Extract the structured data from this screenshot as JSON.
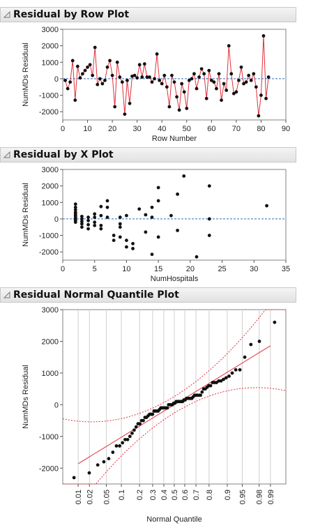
{
  "sections": [
    {
      "title": "Residual by Row Plot"
    },
    {
      "title": "Residual by X Plot"
    },
    {
      "title": "Residual Normal Quantile Plot"
    }
  ],
  "colors": {
    "points": "#111111",
    "line": "#e0303c",
    "zero": "#2a6bb8",
    "grid": "#cfcfcf",
    "frame": "#808080"
  },
  "chart_data": [
    {
      "type": "line",
      "title": "Residual by Row Plot",
      "xlabel": "Row Number",
      "ylabel": "NumMDs Residual",
      "xlim": [
        0,
        90
      ],
      "ylim": [
        -2500,
        3000
      ],
      "x_ticks": [
        0,
        10,
        20,
        30,
        40,
        50,
        60,
        70,
        80,
        90
      ],
      "y_ticks": [
        -2000,
        -1000,
        0,
        1000,
        2000,
        3000
      ],
      "reference_line": 0,
      "series": [
        {
          "x": [
            1,
            2,
            3,
            4,
            5,
            6,
            7,
            8,
            9,
            10,
            11,
            12,
            13,
            14,
            15,
            16,
            17,
            18,
            19,
            20,
            21,
            22,
            23,
            24,
            25,
            26,
            27,
            28,
            29,
            30,
            31,
            32,
            33,
            34,
            35,
            36,
            37,
            38,
            39,
            40,
            41,
            42,
            43,
            44,
            45,
            46,
            47,
            48,
            49,
            50,
            51,
            52,
            53,
            54,
            55,
            56,
            57,
            58,
            59,
            60,
            61,
            62,
            63,
            64,
            65,
            66,
            67,
            68,
            69,
            70,
            71,
            72,
            73,
            74,
            75,
            76,
            77,
            78,
            79,
            80,
            81,
            82,
            83
          ],
          "y": [
            -100,
            -600,
            -200,
            1100,
            -1300,
            750,
            50,
            300,
            500,
            700,
            850,
            200,
            1900,
            -350,
            0,
            -300,
            -100,
            700,
            1100,
            200,
            -1700,
            1000,
            100,
            -200,
            -2150,
            -100,
            -1500,
            150,
            200,
            50,
            850,
            100,
            900,
            100,
            100,
            -200,
            0,
            1500,
            -100,
            -300,
            200,
            -500,
            -1700,
            200,
            -200,
            -1100,
            -1900,
            -300,
            -800,
            -1800,
            -100,
            0,
            300,
            -600,
            100,
            600,
            300,
            -1200,
            500,
            -100,
            -200,
            -600,
            300,
            -1300,
            -300,
            -700,
            2000,
            300,
            -900,
            -800,
            -100,
            700,
            -300,
            -200,
            200,
            -100,
            300,
            -500,
            -2250,
            -1000,
            2600,
            -1200,
            100
          ]
        }
      ]
    },
    {
      "type": "scatter",
      "title": "Residual by X Plot",
      "xlabel": "NumHospitals",
      "ylabel": "NumMDs Residual",
      "xlim": [
        0,
        35
      ],
      "ylim": [
        -2500,
        3000
      ],
      "x_ticks": [
        0,
        5,
        10,
        15,
        20,
        25,
        30,
        35
      ],
      "y_ticks": [
        -2000,
        -1000,
        0,
        1000,
        2000,
        3000
      ],
      "reference_line": 0,
      "points": [
        [
          2,
          900
        ],
        [
          2,
          700
        ],
        [
          2,
          550
        ],
        [
          2,
          400
        ],
        [
          2,
          300
        ],
        [
          2,
          200
        ],
        [
          2,
          100
        ],
        [
          2,
          0
        ],
        [
          2,
          -100
        ],
        [
          2,
          -200
        ],
        [
          3,
          150
        ],
        [
          3,
          0
        ],
        [
          3,
          -150
        ],
        [
          3,
          -300
        ],
        [
          3,
          -500
        ],
        [
          4,
          100
        ],
        [
          4,
          -100
        ],
        [
          4,
          -350
        ],
        [
          4,
          -600
        ],
        [
          5,
          300
        ],
        [
          5,
          100
        ],
        [
          5,
          -200
        ],
        [
          5,
          -400
        ],
        [
          6,
          750
        ],
        [
          6,
          200
        ],
        [
          6,
          -400
        ],
        [
          6,
          -600
        ],
        [
          7,
          1100
        ],
        [
          7,
          700
        ],
        [
          7,
          100
        ],
        [
          8,
          -1300
        ],
        [
          8,
          -1000
        ],
        [
          9,
          -1100
        ],
        [
          9,
          100
        ],
        [
          9,
          -300
        ],
        [
          9,
          -500
        ],
        [
          10,
          200
        ],
        [
          10,
          -1300
        ],
        [
          10,
          -1700
        ],
        [
          11,
          -1800
        ],
        [
          11,
          -1500
        ],
        [
          12,
          600
        ],
        [
          13,
          -800
        ],
        [
          13,
          250
        ],
        [
          14,
          100
        ],
        [
          14,
          -2150
        ],
        [
          14,
          700
        ],
        [
          15,
          1100
        ],
        [
          15,
          1900
        ],
        [
          15,
          -1100
        ],
        [
          17,
          200
        ],
        [
          18,
          1500
        ],
        [
          18,
          -700
        ],
        [
          19,
          2600
        ],
        [
          21,
          -2300
        ],
        [
          23,
          2000
        ],
        [
          23,
          0
        ],
        [
          23,
          -1000
        ],
        [
          32,
          800
        ]
      ]
    },
    {
      "type": "scatter",
      "title": "Residual Normal Quantile Plot",
      "xlabel": "Normal Quantile",
      "ylabel": "NumMDs Residual",
      "ylim": [
        -2500,
        3000
      ],
      "y_ticks": [
        -2000,
        -1000,
        0,
        1000,
        2000,
        3000
      ],
      "x_tick_labels": [
        "0.01",
        "0.02",
        "0.05",
        "0.1",
        "0.2",
        "0.3",
        "0.4",
        "0.5",
        "0.6",
        "0.7",
        "0.8",
        "0.9",
        "0.95",
        "0.98",
        "0.99"
      ],
      "x_tick_probabilities": [
        0.01,
        0.02,
        0.05,
        0.1,
        0.2,
        0.3,
        0.4,
        0.5,
        0.6,
        0.7,
        0.8,
        0.9,
        0.95,
        0.98,
        0.99
      ],
      "fit_line": {
        "y_at_q0": 0,
        "slope_per_sd": 800
      },
      "confidence_bands": true,
      "points_sorted_residuals": [
        -2300,
        -2150,
        -1900,
        -1800,
        -1700,
        -1500,
        -1300,
        -1300,
        -1200,
        -1100,
        -1100,
        -1000,
        -900,
        -800,
        -700,
        -600,
        -600,
        -500,
        -500,
        -400,
        -400,
        -350,
        -300,
        -300,
        -300,
        -200,
        -200,
        -200,
        -200,
        -150,
        -100,
        -100,
        -100,
        -100,
        -100,
        -100,
        0,
        0,
        0,
        0,
        50,
        50,
        100,
        100,
        100,
        100,
        100,
        100,
        150,
        150,
        200,
        200,
        200,
        200,
        200,
        250,
        300,
        300,
        300,
        300,
        300,
        400,
        500,
        500,
        550,
        600,
        600,
        700,
        700,
        700,
        750,
        750,
        800,
        850,
        900,
        1000,
        1100,
        1100,
        1500,
        1900,
        2000,
        2600
      ]
    }
  ]
}
